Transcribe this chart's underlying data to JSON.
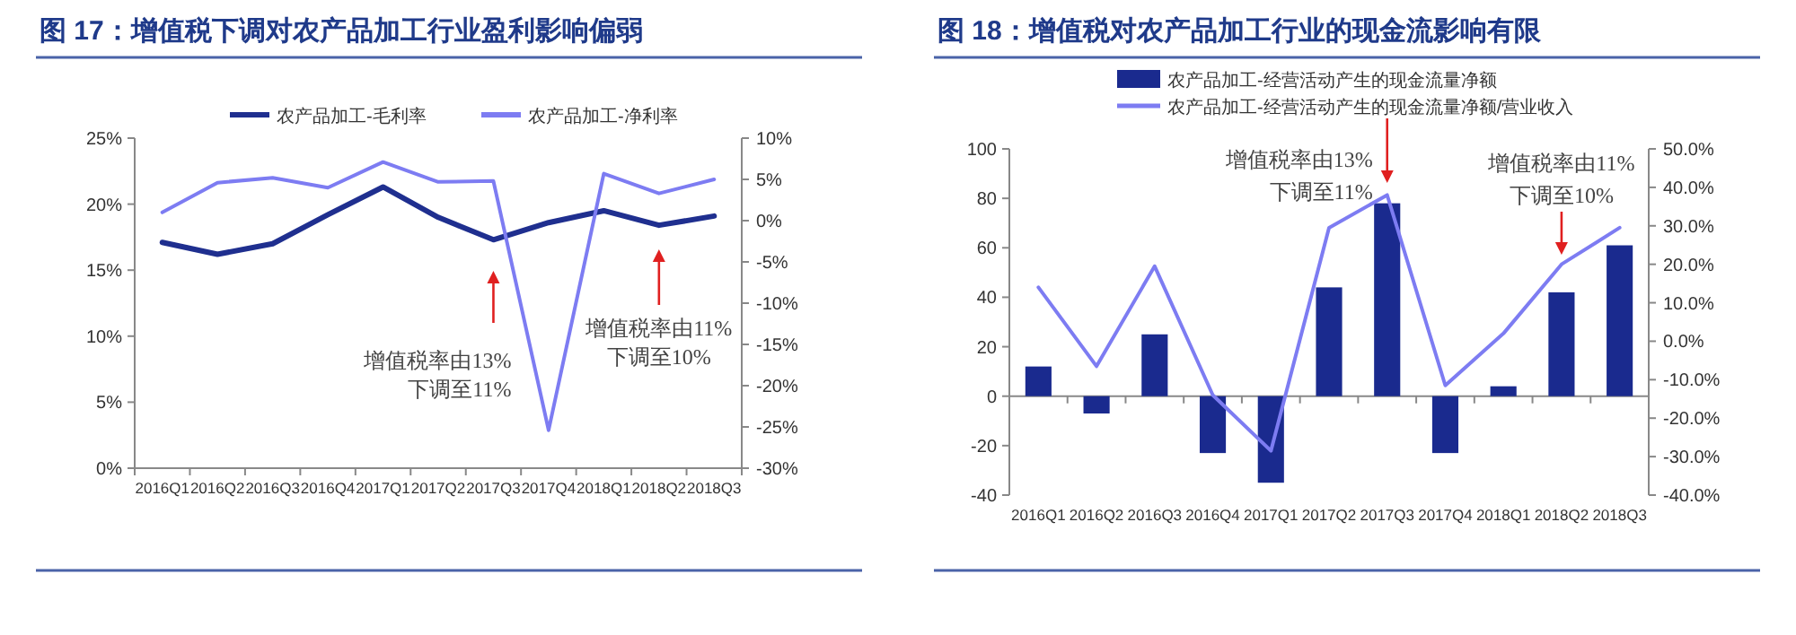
{
  "chart_data": [
    {
      "type": "line",
      "title": "图 17：增值税下调对农产品加工行业盈利影响偏弱",
      "categories": [
        "2016Q1",
        "2016Q2",
        "2016Q3",
        "2016Q4",
        "2017Q1",
        "2017Q2",
        "2017Q3",
        "2017Q4",
        "2018Q1",
        "2018Q2",
        "2018Q3"
      ],
      "series": [
        {
          "name": "农产品加工-毛利率",
          "color": "#1f2f8f",
          "values": [
            17.1,
            16.2,
            17.0,
            19.2,
            21.3,
            19.0,
            17.3,
            18.6,
            19.5,
            18.4,
            19.1
          ]
        },
        {
          "name": "农产品加工-净利率",
          "color": "#7d7cf2",
          "axis": "y2",
          "values": [
            1.0,
            4.6,
            5.2,
            4.0,
            7.1,
            4.7,
            4.8,
            -25.4,
            5.7,
            3.3,
            5.0
          ]
        }
      ],
      "ylim": [
        0,
        25
      ],
      "yticks": [
        {
          "value": 0,
          "label": "0%"
        },
        {
          "value": 5,
          "label": "5%"
        },
        {
          "value": 10,
          "label": "10%"
        },
        {
          "value": 15,
          "label": "15%"
        },
        {
          "value": 20,
          "label": "20%"
        },
        {
          "value": 25,
          "label": "25%"
        }
      ],
      "y2lim": [
        -30,
        10
      ],
      "y2ticks": [
        {
          "value": -30,
          "label": "-30%"
        },
        {
          "value": -25,
          "label": "-25%"
        },
        {
          "value": -20,
          "label": "-20%"
        },
        {
          "value": -15,
          "label": "-15%"
        },
        {
          "value": -10,
          "label": "-10%"
        },
        {
          "value": -5,
          "label": "-5%"
        },
        {
          "value": 0,
          "label": "0%"
        },
        {
          "value": 5,
          "label": "5%"
        },
        {
          "value": 10,
          "label": "10%"
        }
      ],
      "annotations": [
        "增值税率由13%\n下调至11%",
        "增值税率由11%\n下调至10%"
      ],
      "legend": "top"
    },
    {
      "type": "bar",
      "title": "图 18：增值税对农产品加工行业的现金流影响有限",
      "categories": [
        "2016Q1",
        "2016Q2",
        "2016Q3",
        "2016Q4",
        "2017Q1",
        "2017Q2",
        "2017Q3",
        "2017Q4",
        "2018Q1",
        "2018Q2",
        "2018Q3"
      ],
      "series": [
        {
          "name": "农产品加工-经营活动产生的现金流量净额",
          "color": "#1a2a8e",
          "values": [
            12,
            -7,
            25,
            -23,
            -35,
            44,
            78,
            -23,
            4,
            42,
            61
          ]
        },
        {
          "name": "农产品加工-经营活动产生的现金流量净额/营业收入",
          "type": "line",
          "color": "#7d7cf2",
          "axis": "y2",
          "values": [
            14,
            -6.5,
            19.5,
            -14,
            -28.5,
            29.5,
            38,
            -11.5,
            2,
            20,
            29.5
          ]
        }
      ],
      "ylim": [
        -40,
        100
      ],
      "yticks": [
        -40,
        -20,
        0,
        20,
        40,
        60,
        80,
        100
      ],
      "y2lim": [
        -40,
        50
      ],
      "y2ticks": [
        {
          "value": -40,
          "label": "-40.0%"
        },
        {
          "value": -30,
          "label": "-30.0%"
        },
        {
          "value": -20,
          "label": "-20.0%"
        },
        {
          "value": -10,
          "label": "-10.0%"
        },
        {
          "value": 0,
          "label": "0.0%"
        },
        {
          "value": 10,
          "label": "10.0%"
        },
        {
          "value": 20,
          "label": "20.0%"
        },
        {
          "value": 30,
          "label": "30.0%"
        },
        {
          "value": 40,
          "label": "40.0%"
        },
        {
          "value": 50,
          "label": "50.0%"
        }
      ],
      "annotations": [
        "增值税率由13%\n下调至11%",
        "增值税率由11%\n下调至10%"
      ],
      "legend": "top"
    }
  ]
}
